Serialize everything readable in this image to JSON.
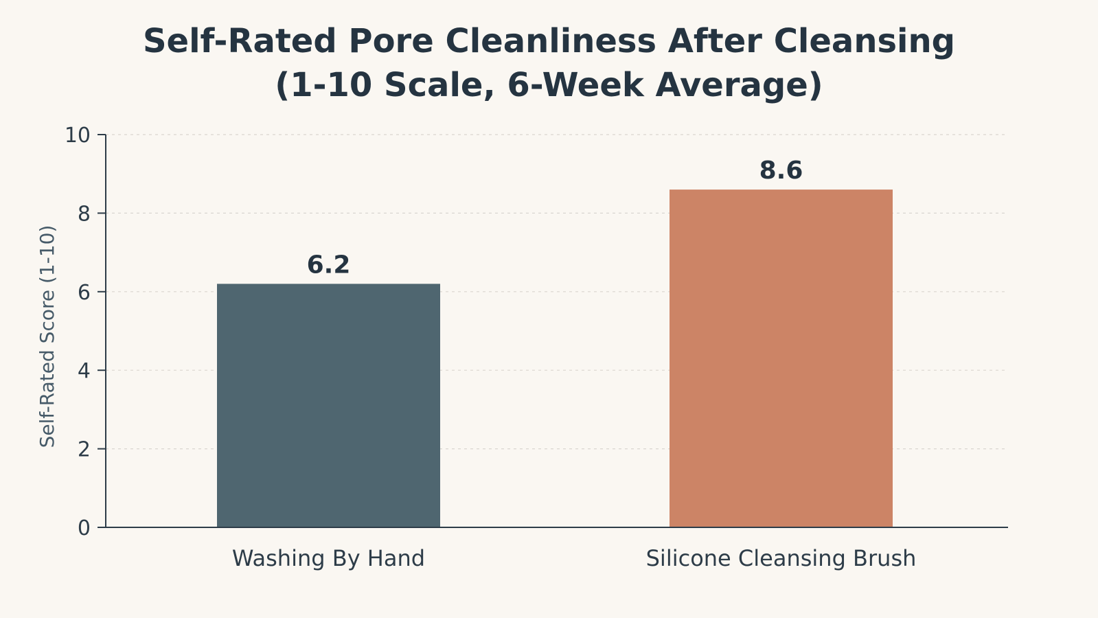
{
  "chart_data": {
    "type": "bar",
    "title": "Self-Rated Pore Cleanliness After Cleansing",
    "subtitle": "(1-10 Scale, 6-Week Average)",
    "xlabel": "",
    "ylabel": "Self-Rated Score (1-10)",
    "categories": [
      "Washing By Hand",
      "Silicone Cleansing Brush"
    ],
    "values": [
      6.2,
      8.6
    ],
    "value_labels": [
      "6.2",
      "8.6"
    ],
    "colors": [
      "#4f6670",
      "#cc8466"
    ],
    "ylim": [
      0,
      10
    ],
    "yticks": [
      0,
      2,
      4,
      6,
      8,
      10
    ],
    "grid": true,
    "legend": "none"
  }
}
